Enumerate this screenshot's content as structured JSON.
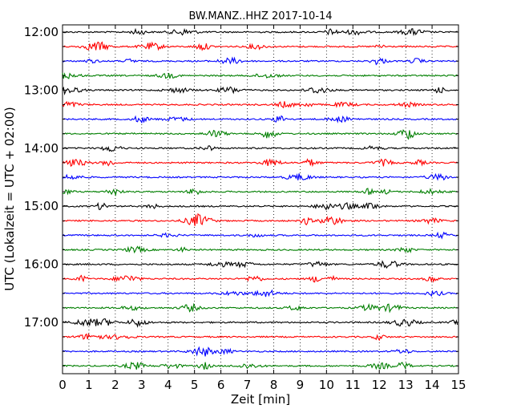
{
  "chart_data": {
    "type": "line",
    "title": "BW.MANZ..HHZ 2017-10-14",
    "xlabel": "Zeit  [min]",
    "ylabel": "UTC (Lokalzeit = UTC + 02:00)",
    "xlim": [
      0,
      15
    ],
    "x_ticks": [
      "0",
      "1",
      "2",
      "3",
      "4",
      "5",
      "6",
      "7",
      "8",
      "9",
      "10",
      "11",
      "12",
      "13",
      "14",
      "15"
    ],
    "y_ticks": [
      "12:00",
      "13:00",
      "14:00",
      "15:00",
      "16:00",
      "17:00"
    ],
    "grid": "vertical dotted",
    "trace_start": "12:00",
    "trace_interval_minutes": 15,
    "trace_count": 24,
    "color_cycle": [
      "#000000",
      "#ff0000",
      "#0000ff",
      "#007f00"
    ]
  }
}
